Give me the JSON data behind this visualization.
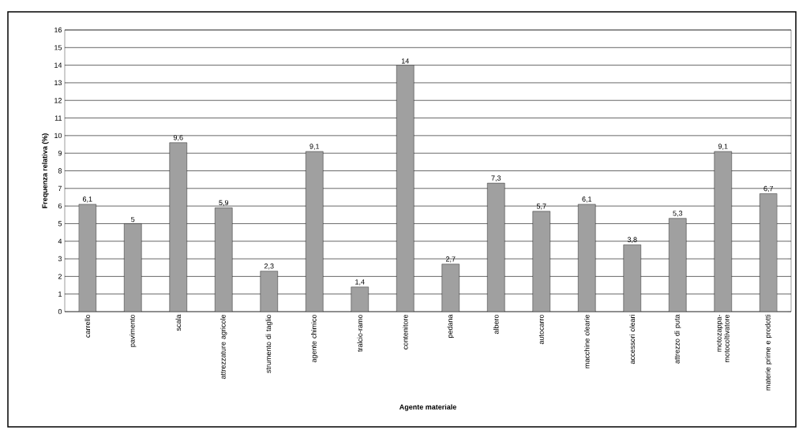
{
  "chart_data": {
    "type": "bar",
    "xlabel": "Agente materiale",
    "ylabel": "Frequenza relativa (%)",
    "categories": [
      "carrello",
      "pavimento",
      "scala",
      "attrezzature agricole",
      "strumento di taglio",
      "agente chimico",
      "tralcio-ramo",
      "contenitore",
      "pedana",
      "albero",
      "autocarro",
      "macchine olearie",
      "accessori oleari",
      "attrezzo di puta",
      "motozappa-motocoltivatore",
      "materie prime e prodotti"
    ],
    "values": [
      6.1,
      5,
      9.6,
      5.9,
      2.3,
      9.1,
      1.4,
      14,
      2.7,
      7.3,
      5.7,
      6.1,
      3.8,
      5.3,
      9.1,
      6.7
    ],
    "value_labels": [
      "6,1",
      "5",
      "9,6",
      "5,9",
      "2,3",
      "9,1",
      "1,4",
      "14",
      "2,7",
      "7,3",
      "5,7",
      "6,1",
      "3,8",
      "5,3",
      "9,1",
      "6,7"
    ],
    "color": "#a0a0a0",
    "ylim": [
      0,
      16
    ],
    "yticks": [
      0,
      1,
      2,
      3,
      4,
      5,
      6,
      7,
      8,
      9,
      10,
      11,
      12,
      13,
      14,
      15,
      16
    ],
    "grid": "y"
  }
}
